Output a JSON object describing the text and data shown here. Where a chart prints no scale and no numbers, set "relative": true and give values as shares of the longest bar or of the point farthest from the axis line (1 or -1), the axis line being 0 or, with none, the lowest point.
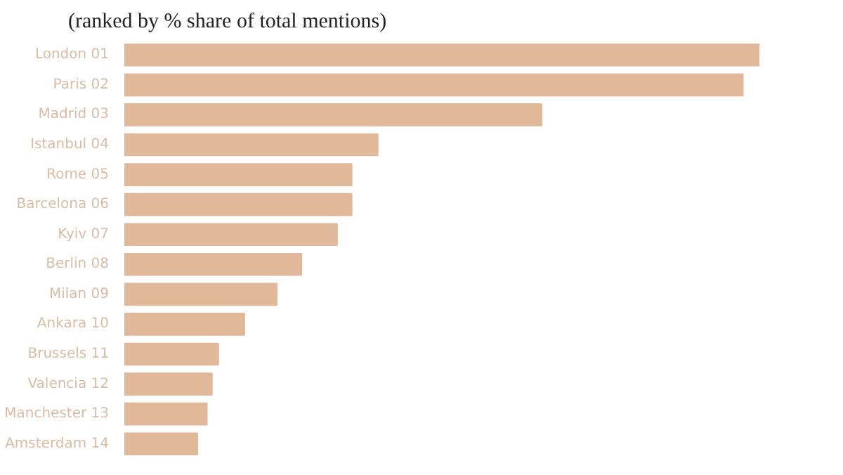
{
  "chart_data": {
    "type": "bar",
    "orientation": "horizontal",
    "relative": true,
    "subtitle": "(ranked by % share of total mentions)",
    "categories": [
      "London 01",
      "Paris 02",
      "Madrid 03",
      "Istanbul 04",
      "Rome 05",
      "Barcelona 06",
      "Kyiv 07",
      "Berlin 08",
      "Milan 09",
      "Ankara 10",
      "Brussels 11",
      "Valencia 12",
      "Manchester 13",
      "Amsterdam 14"
    ],
    "values": [
      1,
      0.974,
      0.657,
      0.399,
      0.358,
      0.358,
      0.335,
      0.279,
      0.24,
      0.189,
      0.148,
      0.138,
      0.13,
      0.115
    ],
    "color": "#e0b89a",
    "grid": false
  }
}
